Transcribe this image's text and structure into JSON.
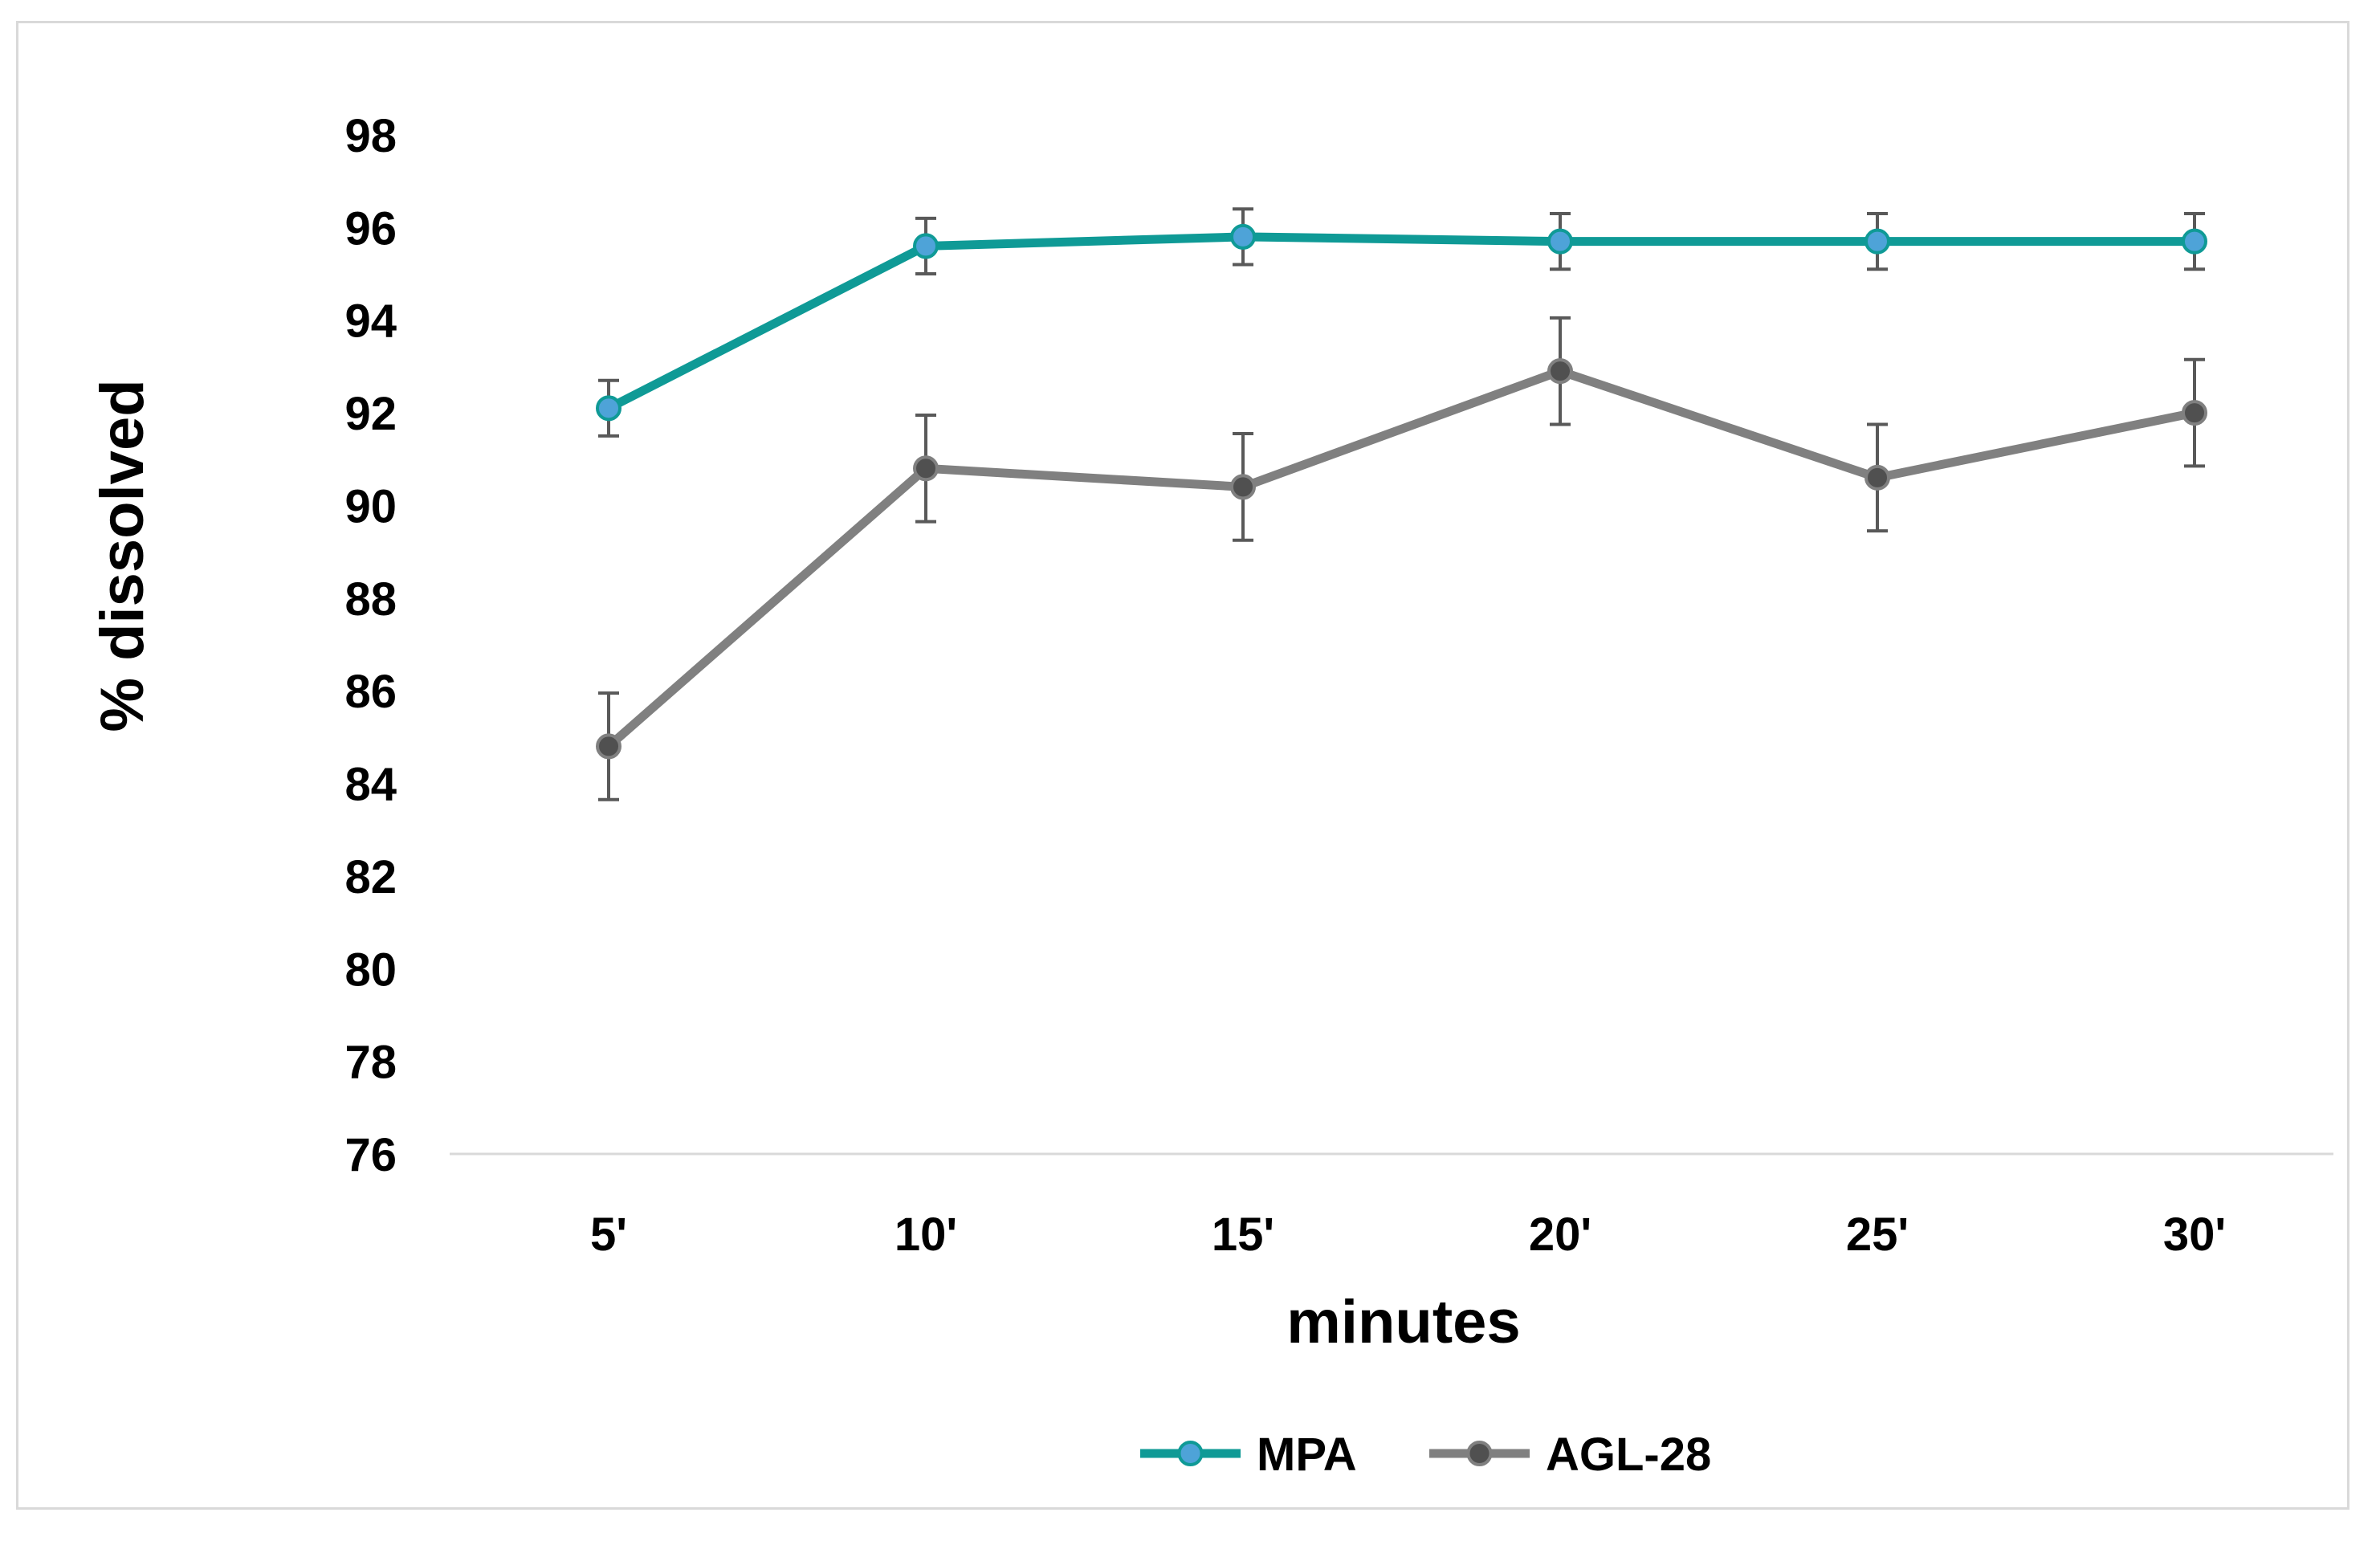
{
  "chart_data": {
    "type": "line",
    "title": "",
    "xlabel": "minutes",
    "ylabel": "% dissolved",
    "categories": [
      "5'",
      "10'",
      "15'",
      "20'",
      "25'",
      "30'"
    ],
    "ylim": [
      76,
      98
    ],
    "yticks": [
      76,
      78,
      80,
      82,
      84,
      86,
      88,
      90,
      92,
      94,
      96,
      98
    ],
    "grid": false,
    "legend_position": "bottom",
    "series": [
      {
        "name": "MPA",
        "color": "#0f9a96",
        "marker_color": "#4ea3d8",
        "values": [
          92.1,
          95.6,
          95.8,
          95.7,
          95.7,
          95.7
        ],
        "errors": [
          0.6,
          0.6,
          0.6,
          0.6,
          0.6,
          0.6
        ]
      },
      {
        "name": "AGL-28",
        "color": "#808080",
        "marker_color": "#505050",
        "values": [
          84.8,
          90.8,
          90.4,
          92.9,
          90.6,
          92.0
        ],
        "errors": [
          1.15,
          1.15,
          1.15,
          1.15,
          1.15,
          1.15
        ]
      }
    ]
  }
}
